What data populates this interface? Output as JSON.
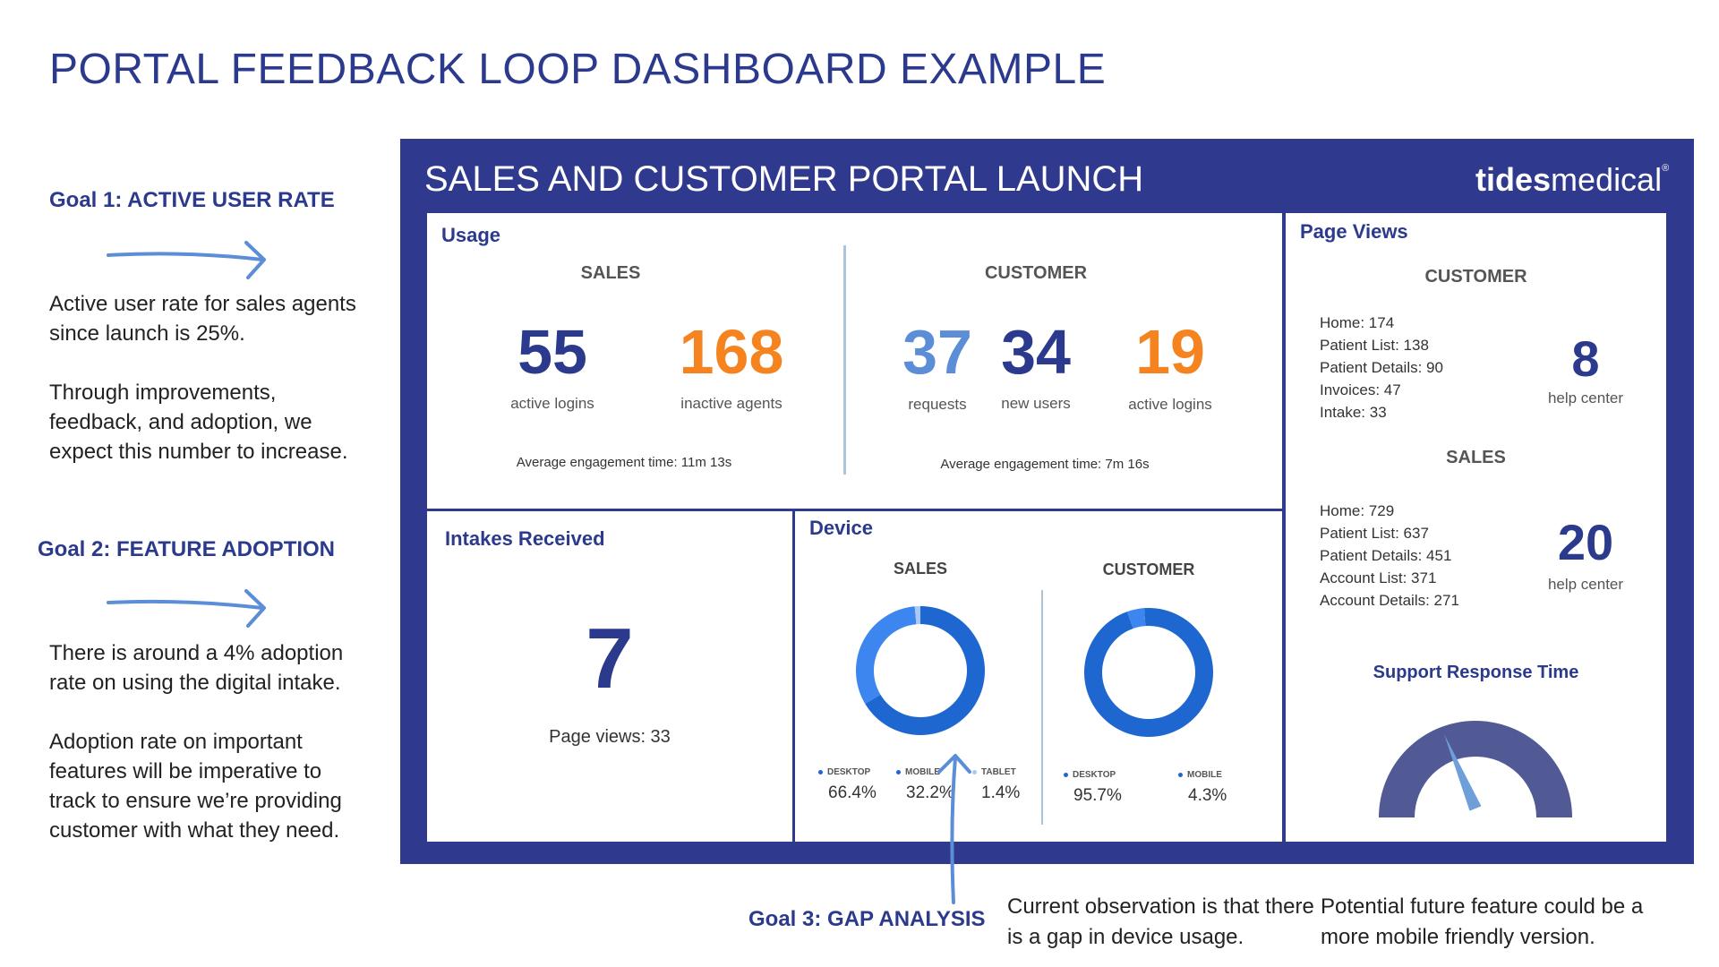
{
  "page": {
    "title": "PORTAL FEEDBACK LOOP DASHBOARD EXAMPLE"
  },
  "goals": [
    {
      "label": "Goal 1: ACTIVE USER RATE",
      "paragraphs": [
        "Active user rate for sales agents since launch is 25%.",
        "Through improvements, feedback, and adoption, we expect this number to increase."
      ]
    },
    {
      "label": "Goal 2: FEATURE ADOPTION",
      "paragraphs": [
        "There is around a 4% adoption rate on using the digital intake.",
        "Adoption rate on important features will be imperative to track to ensure we’re providing customer with what they need."
      ]
    },
    {
      "label": "Goal 3: GAP ANALYSIS",
      "paragraphs": [
        "Current observation is that there is a gap in device usage.",
        "Potential future feature could be a more mobile friendly version."
      ]
    }
  ],
  "dashboard": {
    "title": "SALES AND CUSTOMER PORTAL LAUNCH",
    "logo": {
      "bold": "tides",
      "light": "medical",
      "mark": "®"
    },
    "usage": {
      "label": "Usage",
      "sales": {
        "heading": "SALES",
        "stats": [
          {
            "value": "55",
            "label": "active logins",
            "color": "#2b3a8c"
          },
          {
            "value": "168",
            "label": "inactive agents",
            "color": "#f5831f"
          }
        ],
        "engagement": "Average engagement time: 11m 13s"
      },
      "customer": {
        "heading": "CUSTOMER",
        "stats": [
          {
            "value": "37",
            "label": "requests",
            "color": "#5b8ed6"
          },
          {
            "value": "34",
            "label": "new users",
            "color": "#2b3a8c"
          },
          {
            "value": "19",
            "label": "active logins",
            "color": "#f5831f"
          }
        ],
        "engagement": "Average engagement time: 7m 16s"
      }
    },
    "intakes": {
      "label": "Intakes Received",
      "value": "7",
      "page_views": "Page views: 33"
    },
    "device": {
      "label": "Device",
      "sales": {
        "heading": "SALES",
        "segments": [
          {
            "name": "DESKTOP",
            "value": "66.4%",
            "pct": 66.4,
            "color": "#1e66d0"
          },
          {
            "name": "MOBILE",
            "value": "32.2%",
            "pct": 32.2,
            "color": "#3d86f0"
          },
          {
            "name": "TABLET",
            "value": "1.4%",
            "pct": 1.4,
            "color": "#a9c8f5"
          }
        ]
      },
      "customer": {
        "heading": "CUSTOMER",
        "segments": [
          {
            "name": "DESKTOP",
            "value": "95.7%",
            "pct": 95.7,
            "color": "#1e66d0"
          },
          {
            "name": "MOBILE",
            "value": "4.3%",
            "pct": 4.3,
            "color": "#3d86f0"
          }
        ]
      }
    },
    "page_views": {
      "label": "Page Views",
      "customer": {
        "heading": "CUSTOMER",
        "items": [
          "Home: 174",
          "Patient List: 138",
          "Patient Details: 90",
          "Invoices: 47",
          "Intake: 33"
        ],
        "help_value": "8",
        "help_label": "help center"
      },
      "sales": {
        "heading": "SALES",
        "items": [
          "Home: 729",
          "Patient List: 637",
          "Patient Details: 451",
          "Account List: 371",
          "Account Details: 271"
        ],
        "help_value": "20",
        "help_label": "help center"
      },
      "support": {
        "label": "Support Response Time",
        "needle_fraction": 0.38
      }
    }
  },
  "colors": {
    "brand": "#2f3a8e",
    "accent": "#f5831f",
    "arrow": "#5b8ed6"
  }
}
